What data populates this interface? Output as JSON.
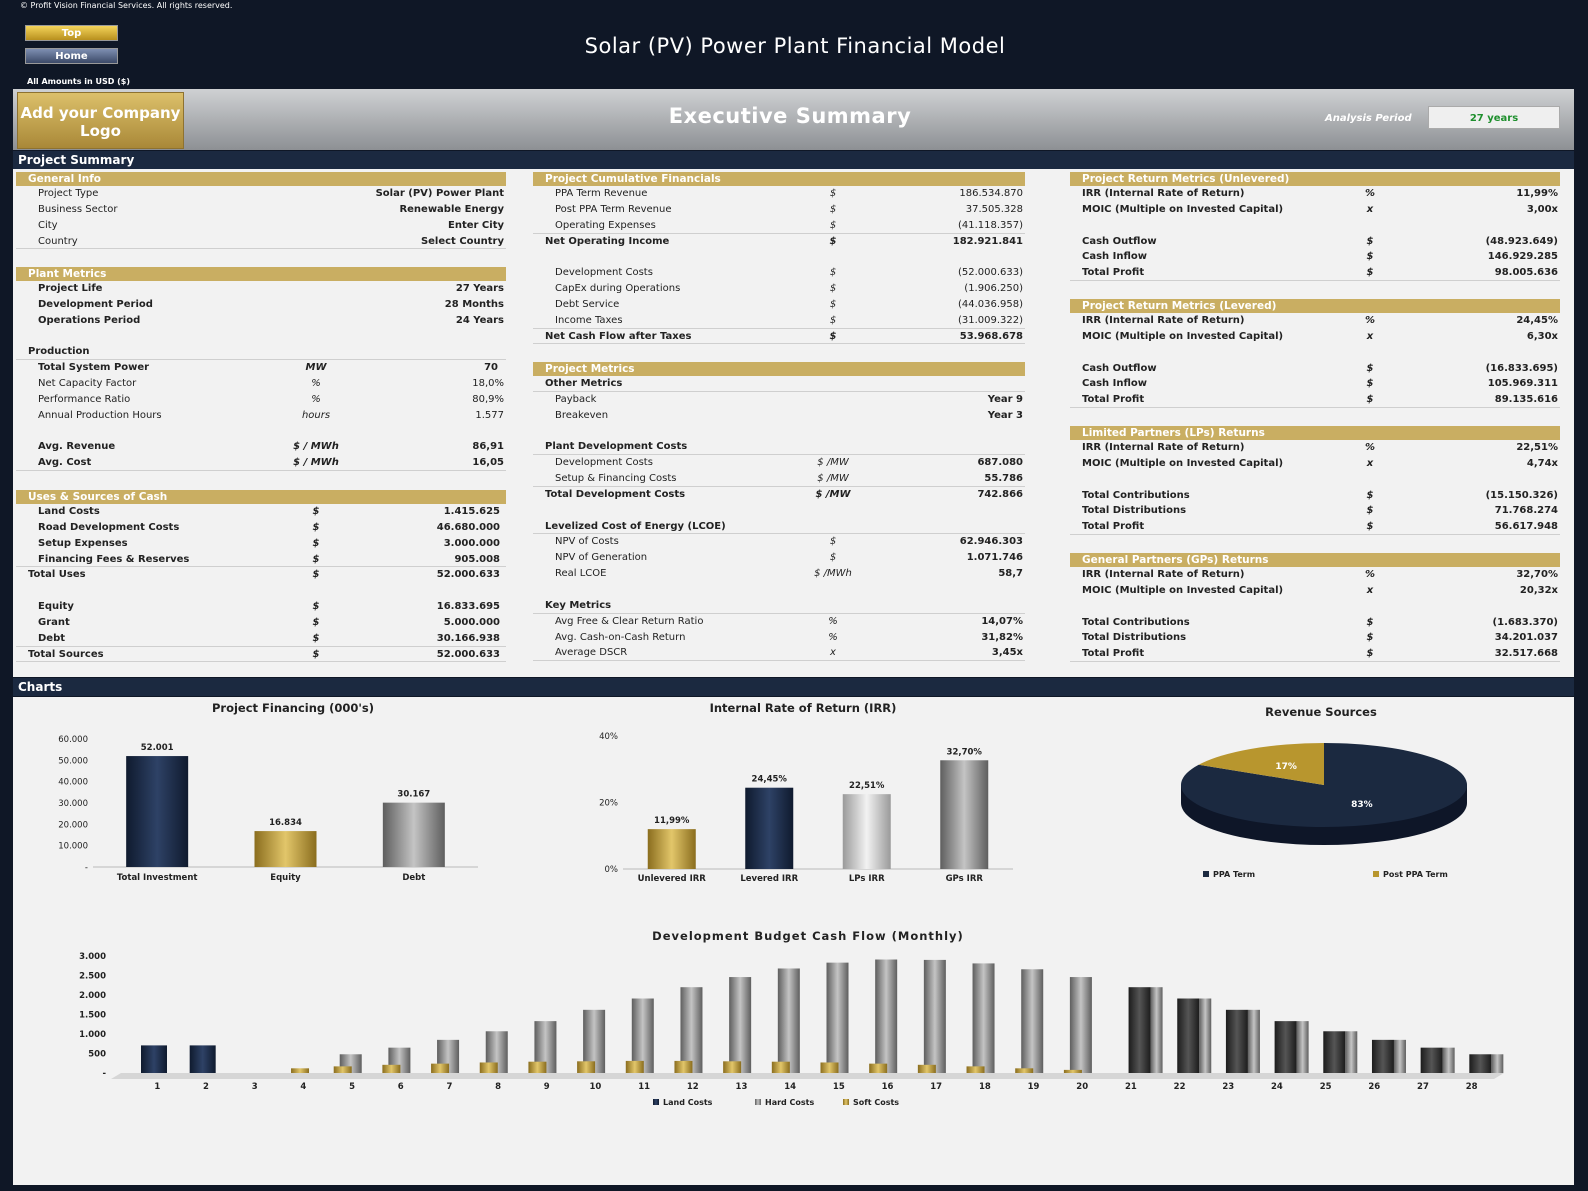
{
  "header": {
    "copyright": "© Profit Vision Financial Services. All rights reserved.",
    "top_button": "Top",
    "home_button": "Home",
    "title": "Solar (PV) Power Plant Financial Model",
    "units": "All Amounts in  USD ($)",
    "logo_text": "Add your Company Logo",
    "banner_title": "Executive Summary",
    "analysis_period_label": "Analysis Period",
    "analysis_period_value": "27 years"
  },
  "sections": {
    "project_summary": "Project Summary",
    "charts": "Charts"
  },
  "general_info": {
    "title": "General Info",
    "rows": [
      {
        "label": "Project Type",
        "value": "Solar (PV) Power Plant"
      },
      {
        "label": "Business Sector",
        "value": "Renewable Energy"
      },
      {
        "label": "City",
        "value": "Enter City"
      },
      {
        "label": "Country",
        "value": "Select Country"
      }
    ]
  },
  "plant_metrics": {
    "title": "Plant Metrics",
    "rows": [
      {
        "label": "Project Life",
        "value": "27 Years"
      },
      {
        "label": "Development Period",
        "value": "28 Months"
      },
      {
        "label": "Operations Period",
        "value": "24 Years"
      }
    ],
    "production_label": "Production",
    "production": [
      {
        "label": "Total System Power",
        "unit": "MW",
        "value": "70"
      },
      {
        "label": "Net Capacity Factor",
        "unit": "%",
        "value": "18,0%"
      },
      {
        "label": "Performance Ratio",
        "unit": "%",
        "value": "80,9%"
      },
      {
        "label": "Annual Production Hours",
        "unit": "hours",
        "value": "1.577"
      }
    ],
    "averages": [
      {
        "label": "Avg. Revenue",
        "unit": "$ / MWh",
        "value": "86,91"
      },
      {
        "label": "Avg. Cost",
        "unit": "$ / MWh",
        "value": "16,05"
      }
    ]
  },
  "uses_sources": {
    "title": "Uses & Sources of Cash",
    "uses": [
      {
        "label": "Land Costs",
        "unit": "$",
        "value": "1.415.625"
      },
      {
        "label": "Road Development Costs",
        "unit": "$",
        "value": "46.680.000"
      },
      {
        "label": "Setup Expenses",
        "unit": "$",
        "value": "3.000.000"
      },
      {
        "label": "Financing Fees & Reserves",
        "unit": "$",
        "value": "905.008"
      }
    ],
    "total_uses": {
      "label": "Total Uses",
      "unit": "$",
      "value": "52.000.633"
    },
    "sources": [
      {
        "label": "Equity",
        "unit": "$",
        "value": "16.833.695"
      },
      {
        "label": "Grant",
        "unit": "$",
        "value": "5.000.000"
      },
      {
        "label": "Debt",
        "unit": "$",
        "value": "30.166.938"
      }
    ],
    "total_sources": {
      "label": "Total Sources",
      "unit": "$",
      "value": "52.000.633"
    }
  },
  "cumulative": {
    "title": "Project Cumulative Financials",
    "rows": [
      {
        "label": "PPA Term Revenue",
        "unit": "$",
        "value": "186.534.870"
      },
      {
        "label": "Post PPA Term Revenue",
        "unit": "$",
        "value": "37.505.328"
      },
      {
        "label": "Operating Expenses",
        "unit": "$",
        "value": "(41.118.357)"
      }
    ],
    "noi": {
      "label": "Net Operating Income",
      "unit": "$",
      "value": "182.921.841"
    },
    "rows2": [
      {
        "label": "Development Costs",
        "unit": "$",
        "value": "(52.000.633)"
      },
      {
        "label": "CapEx during Operations",
        "unit": "$",
        "value": "(1.906.250)"
      },
      {
        "label": "Debt Service",
        "unit": "$",
        "value": "(44.036.958)"
      },
      {
        "label": "Income Taxes",
        "unit": "$",
        "value": "(31.009.322)"
      }
    ],
    "ncf": {
      "label": "Net Cash Flow after Taxes",
      "unit": "$",
      "value": "53.968.678"
    }
  },
  "project_metrics": {
    "title": "Project Metrics",
    "other_label": "Other Metrics",
    "other": [
      {
        "label": "Payback",
        "value": "Year 9"
      },
      {
        "label": "Breakeven",
        "value": "Year 3"
      }
    ],
    "pdc_label": "Plant Development Costs",
    "pdc": [
      {
        "label": "Development Costs",
        "unit": "$ /MW",
        "value": "687.080"
      },
      {
        "label": "Setup & Financing Costs",
        "unit": "$ /MW",
        "value": "55.786"
      }
    ],
    "tdc": {
      "label": "Total Development Costs",
      "unit": "$ /MW",
      "value": "742.866"
    },
    "lcoe_label": "Levelized Cost of Energy (LCOE)",
    "lcoe": [
      {
        "label": "NPV of Costs",
        "unit": "$",
        "value": "62.946.303"
      },
      {
        "label": "NPV of Generation",
        "unit": "$",
        "value": "1.071.746"
      },
      {
        "label": "Real LCOE",
        "unit": "$ /MWh",
        "value": "58,7"
      }
    ],
    "key_label": "Key Metrics",
    "key": [
      {
        "label": "Avg Free & Clear Return Ratio",
        "unit": "%",
        "value": "14,07%"
      },
      {
        "label": "Avg. Cash-on-Cash Return",
        "unit": "%",
        "value": "31,82%"
      },
      {
        "label": "Average DSCR",
        "unit": "x",
        "value": "3,45x"
      }
    ]
  },
  "unlevered": {
    "title": "Project Return Metrics (Unlevered)",
    "r1": [
      {
        "label": "IRR (Internal Rate of Return)",
        "unit": "%",
        "value": "11,99%"
      },
      {
        "label": "MOIC (Multiple on Invested Capital)",
        "unit": "x",
        "value": "3,00x"
      }
    ],
    "r2": [
      {
        "label": "Cash Outflow",
        "unit": "$",
        "value": "(48.923.649)"
      },
      {
        "label": "Cash Inflow",
        "unit": "$",
        "value": "146.929.285"
      },
      {
        "label": "Total Profit",
        "unit": "$",
        "value": "98.005.636"
      }
    ]
  },
  "levered": {
    "title": "Project Return Metrics (Levered)",
    "r1": [
      {
        "label": "IRR (Internal Rate of Return)",
        "unit": "%",
        "value": "24,45%"
      },
      {
        "label": "MOIC (Multiple on Invested Capital)",
        "unit": "x",
        "value": "6,30x"
      }
    ],
    "r2": [
      {
        "label": "Cash Outflow",
        "unit": "$",
        "value": "(16.833.695)"
      },
      {
        "label": "Cash Inflow",
        "unit": "$",
        "value": "105.969.311"
      },
      {
        "label": "Total Profit",
        "unit": "$",
        "value": "89.135.616"
      }
    ]
  },
  "lps": {
    "title": "Limited Partners (LPs) Returns",
    "r1": [
      {
        "label": "IRR (Internal Rate of Return)",
        "unit": "%",
        "value": "22,51%"
      },
      {
        "label": "MOIC (Multiple on Invested Capital)",
        "unit": "x",
        "value": "4,74x"
      }
    ],
    "r2": [
      {
        "label": "Total Contributions",
        "unit": "$",
        "value": "(15.150.326)"
      },
      {
        "label": "Total Distributions",
        "unit": "$",
        "value": "71.768.274"
      },
      {
        "label": "Total Profit",
        "unit": "$",
        "value": "56.617.948"
      }
    ]
  },
  "gps": {
    "title": "General Partners (GPs) Returns",
    "r1": [
      {
        "label": "IRR (Internal Rate of Return)",
        "unit": "%",
        "value": "32,70%"
      },
      {
        "label": "MOIC (Multiple on Invested Capital)",
        "unit": "x",
        "value": "20,32x"
      }
    ],
    "r2": [
      {
        "label": "Total Contributions",
        "unit": "$",
        "value": "(1.683.370)"
      },
      {
        "label": "Total Distributions",
        "unit": "$",
        "value": "34.201.037"
      },
      {
        "label": "Total Profit",
        "unit": "$",
        "value": "32.517.668"
      }
    ]
  },
  "colors": {
    "navy": "#1b2940",
    "gold": "#c9ae62",
    "gold_bar": "#b8962e",
    "gray_bar": "#8a8a8a",
    "light_gray_bar": "#c8c8c8"
  },
  "chart_data": [
    {
      "type": "bar",
      "title": "Project Financing (000's)",
      "categories": [
        "Total Investment",
        "Equity",
        "Debt"
      ],
      "values": [
        52001,
        16834,
        30167
      ],
      "labels": [
        "52.001",
        "16.834",
        "30.167"
      ],
      "yticks": [
        "60.000",
        "50.000",
        "40.000",
        "30.000",
        "20.000",
        "10.000",
        "-"
      ],
      "ylim": [
        0,
        60000
      ]
    },
    {
      "type": "bar",
      "title": "Internal Rate of Return (IRR)",
      "categories": [
        "Unlevered IRR",
        "Levered IRR",
        "LPs IRR",
        "GPs IRR"
      ],
      "values": [
        11.99,
        24.45,
        22.51,
        32.7
      ],
      "labels": [
        "11,99%",
        "24,45%",
        "22,51%",
        "32,70%"
      ],
      "yticks": [
        "40%",
        "20%",
        "0%"
      ],
      "ylim": [
        0,
        40
      ]
    },
    {
      "type": "pie",
      "title": "Revenue Sources",
      "categories": [
        "PPA Term",
        "Post PPA Term"
      ],
      "values": [
        83,
        17
      ],
      "labels": [
        "83%",
        "17%"
      ]
    },
    {
      "type": "bar",
      "title": "Development Budget Cash Flow (Monthly)",
      "categories": [
        "1",
        "2",
        "3",
        "4",
        "5",
        "6",
        "7",
        "8",
        "9",
        "10",
        "11",
        "12",
        "13",
        "14",
        "15",
        "16",
        "17",
        "18",
        "19",
        "20",
        "21",
        "22",
        "23",
        "24",
        "25",
        "26",
        "27",
        "28"
      ],
      "yticks": [
        "3.000",
        "2.500",
        "2.000",
        "1.500",
        "1.000",
        "500",
        "-"
      ],
      "ylim": [
        0,
        3000
      ],
      "series": [
        {
          "name": "Land Costs",
          "values": [
            708,
            708,
            0,
            0,
            0,
            0,
            0,
            0,
            0,
            0,
            0,
            0,
            0,
            0,
            0,
            0,
            0,
            0,
            0,
            0,
            0,
            0,
            0,
            0,
            0,
            0,
            0,
            0
          ]
        },
        {
          "name": "Hard Costs",
          "values": [
            0,
            0,
            0,
            0,
            480,
            650,
            850,
            1070,
            1330,
            1620,
            1910,
            2200,
            2460,
            2680,
            2830,
            2910,
            2900,
            2810,
            2660,
            2460,
            2200,
            1910,
            1620,
            1330,
            1070,
            850,
            650,
            480
          ]
        },
        {
          "name": "Soft Costs",
          "values": [
            0,
            0,
            0,
            120,
            170,
            210,
            240,
            270,
            290,
            300,
            310,
            310,
            300,
            290,
            270,
            240,
            210,
            170,
            120,
            80,
            0,
            0,
            0,
            0,
            0,
            0,
            0,
            0
          ]
        }
      ]
    }
  ]
}
